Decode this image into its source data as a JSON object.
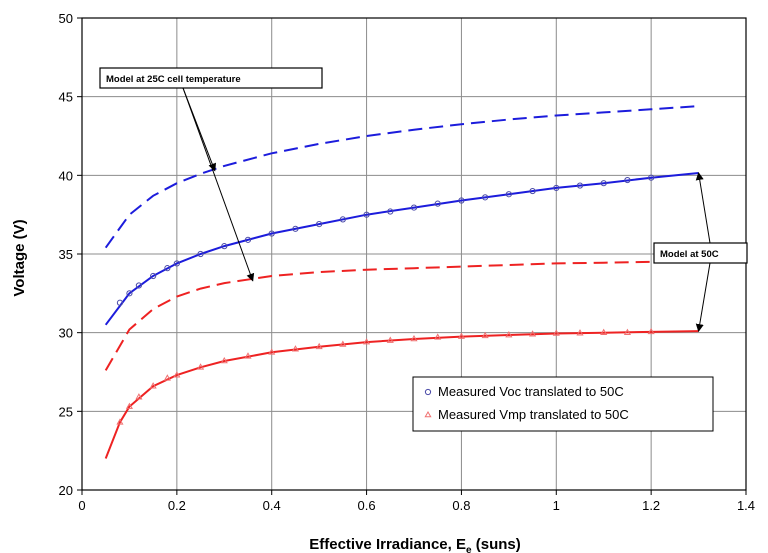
{
  "chart_data": {
    "type": "line",
    "title": "",
    "xlabel": "Effective Irradiance, E",
    "xlabel_subscript": "e",
    "xlabel_suffix": " (suns)",
    "ylabel": "Voltage (V)",
    "xlim": [
      0,
      1.4
    ],
    "ylim": [
      20,
      50
    ],
    "x_ticks": [
      "0",
      "0.2",
      "0.4",
      "0.6",
      "0.8",
      "1",
      "1.2",
      "1.4"
    ],
    "y_ticks": [
      "20",
      "25",
      "30",
      "35",
      "40",
      "45",
      "50"
    ],
    "grid": true,
    "legend_position": "bottom-right",
    "colors": {
      "blue": "#1c1cdc",
      "red": "#ee2222",
      "voc_marker": "#4a4aa8",
      "vmp_marker": "#f07070",
      "grid": "#8c8c8c"
    },
    "series": [
      {
        "kind": "model",
        "style": "dashed",
        "color": "blue",
        "x": [
          0.05,
          0.1,
          0.15,
          0.2,
          0.25,
          0.3,
          0.4,
          0.5,
          0.6,
          0.7,
          0.8,
          0.9,
          1.0,
          1.1,
          1.2,
          1.3
        ],
        "y": [
          35.4,
          37.5,
          38.7,
          39.5,
          40.1,
          40.6,
          41.4,
          42.0,
          42.5,
          42.9,
          43.25,
          43.55,
          43.8,
          44.0,
          44.2,
          44.4
        ]
      },
      {
        "kind": "model",
        "style": "solid",
        "color": "blue",
        "x": [
          0.05,
          0.1,
          0.15,
          0.2,
          0.25,
          0.3,
          0.4,
          0.5,
          0.6,
          0.7,
          0.8,
          0.9,
          1.0,
          1.1,
          1.2,
          1.3
        ],
        "y": [
          30.5,
          32.5,
          33.6,
          34.4,
          35.0,
          35.5,
          36.3,
          36.9,
          37.5,
          37.95,
          38.4,
          38.8,
          39.2,
          39.5,
          39.85,
          40.15
        ]
      },
      {
        "kind": "model",
        "style": "dashed",
        "color": "red",
        "x": [
          0.05,
          0.1,
          0.15,
          0.2,
          0.25,
          0.3,
          0.4,
          0.5,
          0.6,
          0.7,
          0.8,
          0.9,
          1.0,
          1.1,
          1.2,
          1.3
        ],
        "y": [
          27.6,
          30.2,
          31.5,
          32.3,
          32.8,
          33.15,
          33.6,
          33.85,
          34.0,
          34.1,
          34.2,
          34.3,
          34.4,
          34.45,
          34.5,
          34.55
        ]
      },
      {
        "kind": "model",
        "style": "solid",
        "color": "red",
        "x": [
          0.05,
          0.08,
          0.1,
          0.15,
          0.2,
          0.25,
          0.3,
          0.4,
          0.5,
          0.6,
          0.7,
          0.8,
          0.9,
          1.0,
          1.1,
          1.2,
          1.3
        ],
        "y": [
          22.0,
          24.3,
          25.3,
          26.6,
          27.3,
          27.8,
          28.2,
          28.75,
          29.1,
          29.4,
          29.6,
          29.75,
          29.85,
          29.95,
          30.0,
          30.05,
          30.1
        ]
      },
      {
        "kind": "measured",
        "name": "Measured Voc translated to 50C",
        "marker": "circle",
        "color": "voc_marker",
        "x": [
          0.08,
          0.1,
          0.12,
          0.15,
          0.18,
          0.2,
          0.25,
          0.3,
          0.35,
          0.4,
          0.45,
          0.5,
          0.55,
          0.6,
          0.65,
          0.7,
          0.75,
          0.8,
          0.85,
          0.9,
          0.95,
          1.0,
          1.05,
          1.1,
          1.15,
          1.2
        ],
        "y": [
          31.9,
          32.5,
          33.0,
          33.6,
          34.1,
          34.4,
          35.0,
          35.5,
          35.9,
          36.3,
          36.6,
          36.9,
          37.2,
          37.5,
          37.7,
          37.95,
          38.2,
          38.4,
          38.6,
          38.8,
          39.0,
          39.2,
          39.35,
          39.5,
          39.7,
          39.85
        ]
      },
      {
        "kind": "measured",
        "name": "Measured Vmp translated to 50C",
        "marker": "triangle",
        "color": "vmp_marker",
        "x": [
          0.08,
          0.1,
          0.12,
          0.15,
          0.18,
          0.2,
          0.25,
          0.3,
          0.35,
          0.4,
          0.45,
          0.5,
          0.55,
          0.6,
          0.65,
          0.7,
          0.75,
          0.8,
          0.85,
          0.9,
          0.95,
          1.0,
          1.05,
          1.1,
          1.15,
          1.2
        ],
        "y": [
          24.3,
          25.3,
          25.9,
          26.6,
          27.1,
          27.3,
          27.8,
          28.2,
          28.5,
          28.75,
          28.95,
          29.1,
          29.25,
          29.4,
          29.5,
          29.6,
          29.7,
          29.75,
          29.8,
          29.85,
          29.9,
          29.95,
          29.97,
          30.0,
          30.0,
          30.05
        ]
      }
    ],
    "annotations": [
      {
        "text": "Model at 25C cell temperature",
        "arrow_targets": [
          [
            0.28,
            40.3
          ],
          [
            0.36,
            33.3
          ]
        ]
      },
      {
        "text": "Model at 50C",
        "arrow_targets": [
          [
            1.3,
            40.15
          ],
          [
            1.3,
            30.1
          ]
        ]
      }
    ]
  }
}
